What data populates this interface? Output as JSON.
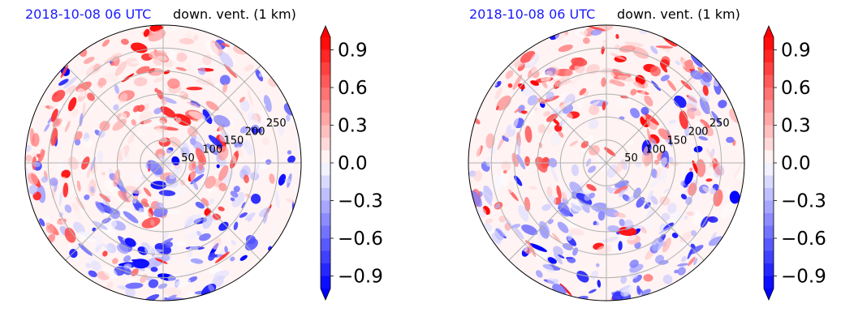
{
  "chart_data": [
    {
      "type": "heatmap",
      "projection": "polar",
      "title_date": "2018-10-08 06 UTC",
      "title_variable": "down. vent. (1 km)",
      "radial_ticks": [
        "50",
        "100",
        "150",
        "200",
        "250"
      ],
      "radial_tick_values": [
        50,
        100,
        150,
        200,
        250
      ],
      "radial_max": 300,
      "spokes_deg": [
        0,
        45,
        90,
        135
      ],
      "pattern_seed": 7,
      "colorbar": {
        "cmap": "bwr",
        "range": [
          -1.0,
          1.0
        ],
        "levels": 20,
        "extend": "both",
        "ticks": [
          "0.9",
          "0.6",
          "0.3",
          "0.0",
          "−0.3",
          "−0.6",
          "−0.9"
        ],
        "tick_values": [
          0.9,
          0.6,
          0.3,
          0.0,
          -0.3,
          -0.6,
          -0.9
        ]
      }
    },
    {
      "type": "heatmap",
      "projection": "polar",
      "title_date": "2018-10-08 06 UTC",
      "title_variable": "down. vent. (1 km)",
      "radial_ticks": [
        "50",
        "100",
        "150",
        "200",
        "250"
      ],
      "radial_tick_values": [
        50,
        100,
        150,
        200,
        250
      ],
      "radial_max": 300,
      "spokes_deg": [
        0,
        45,
        90,
        135
      ],
      "pattern_seed": 19,
      "colorbar": {
        "cmap": "bwr",
        "range": [
          -1.0,
          1.0
        ],
        "levels": 20,
        "extend": "both",
        "ticks": [
          "0.9",
          "0.6",
          "0.3",
          "0.0",
          "−0.3",
          "−0.6",
          "−0.9"
        ],
        "tick_values": [
          0.9,
          0.6,
          0.3,
          0.0,
          -0.3,
          -0.6,
          -0.9
        ]
      }
    }
  ],
  "colors": {
    "positive": "#ff0000",
    "negative": "#0000ff",
    "neutral": "#ffffff",
    "grid": "#b0b0b0",
    "title_date": "#1a1aff"
  }
}
